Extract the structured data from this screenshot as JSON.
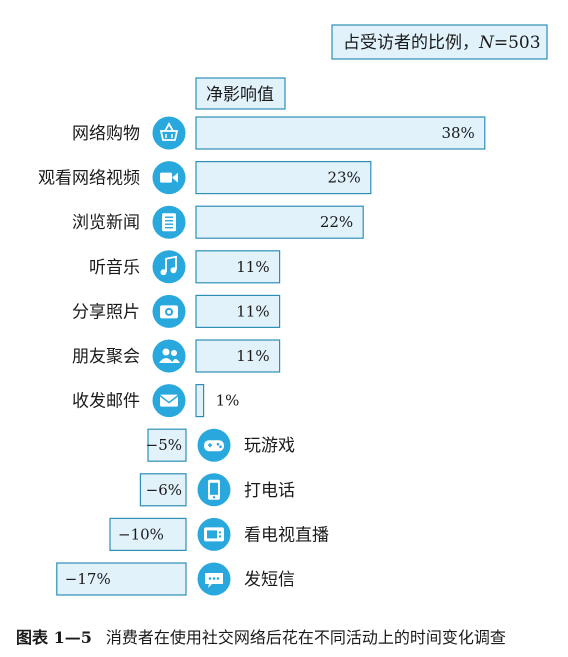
{
  "legend_box": {
    "prefix": "占受访者的比例，",
    "n_label": "N",
    "n_value": "=503"
  },
  "caption": {
    "label": "图表 1—5",
    "text": "消费者在使用社交网络后花在不同活动上的时间变化调查"
  },
  "chart_data": {
    "type": "bar",
    "orientation": "horizontal",
    "title": "净影响值",
    "unit": "%",
    "xlim": [
      -17,
      38
    ],
    "categories": [
      "网络购物",
      "观看网络视频",
      "浏览新闻",
      "听音乐",
      "分享照片",
      "朋友聚会",
      "收发邮件",
      "玩游戏",
      "打电话",
      "看电视直播",
      "发短信"
    ],
    "values": [
      38,
      23,
      22,
      11,
      11,
      11,
      1,
      -5,
      -6,
      -10,
      -17
    ],
    "labels": [
      "38%",
      "23%",
      "22%",
      "11%",
      "11%",
      "11%",
      "1%",
      "−5%",
      "−6%",
      "−10%",
      "−17%"
    ],
    "icons": [
      "shopping-basket-icon",
      "video-camera-icon",
      "news-icon",
      "music-note-icon",
      "camera-icon",
      "people-icon",
      "mail-icon",
      "gamepad-icon",
      "phone-icon",
      "tv-icon",
      "chat-bubble-icon"
    ],
    "colors": {
      "bar_fill": "#e1f2fb",
      "bar_stroke": "#2e8fb6",
      "icon": "#29a8de"
    }
  }
}
